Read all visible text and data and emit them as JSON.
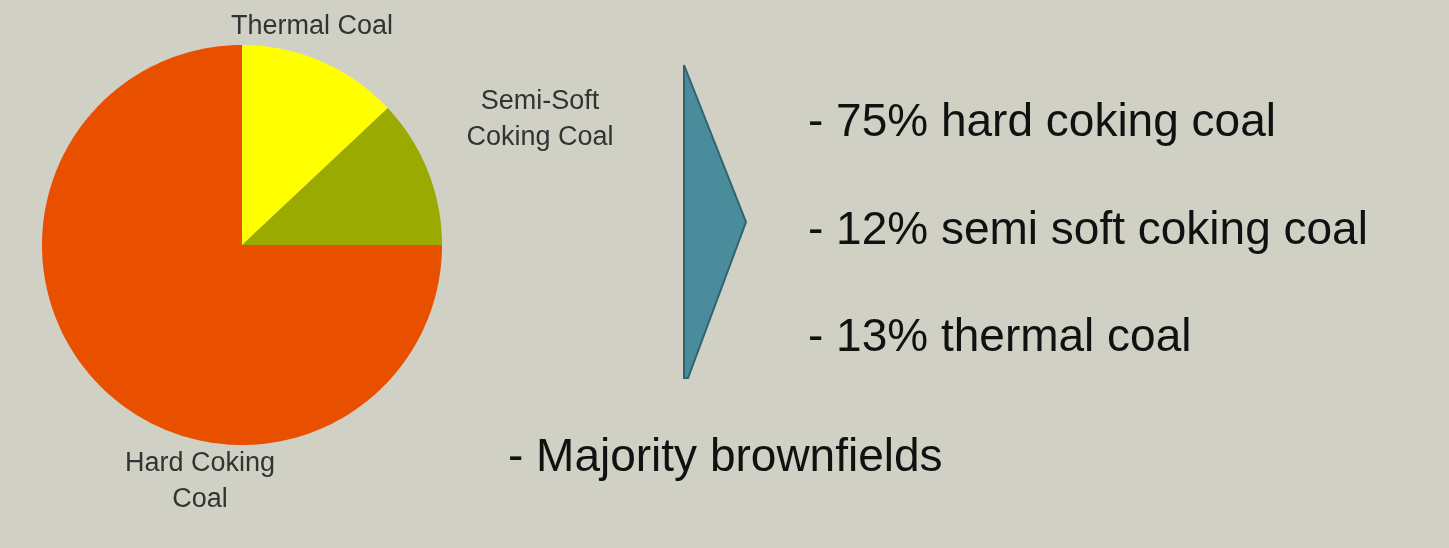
{
  "chart_data": {
    "type": "pie",
    "categories": [
      "Thermal Coal",
      "Semi-Soft Coking Coal",
      "Hard Coking Coal"
    ],
    "values": [
      13,
      12,
      75
    ],
    "colors": [
      "#ffff00",
      "#9aaa00",
      "#e85000"
    ],
    "annotations": [
      "- 75% hard coking coal",
      "- 12% semi soft coking coal",
      "- 13% thermal coal",
      "- Majority brownfields"
    ]
  }
}
